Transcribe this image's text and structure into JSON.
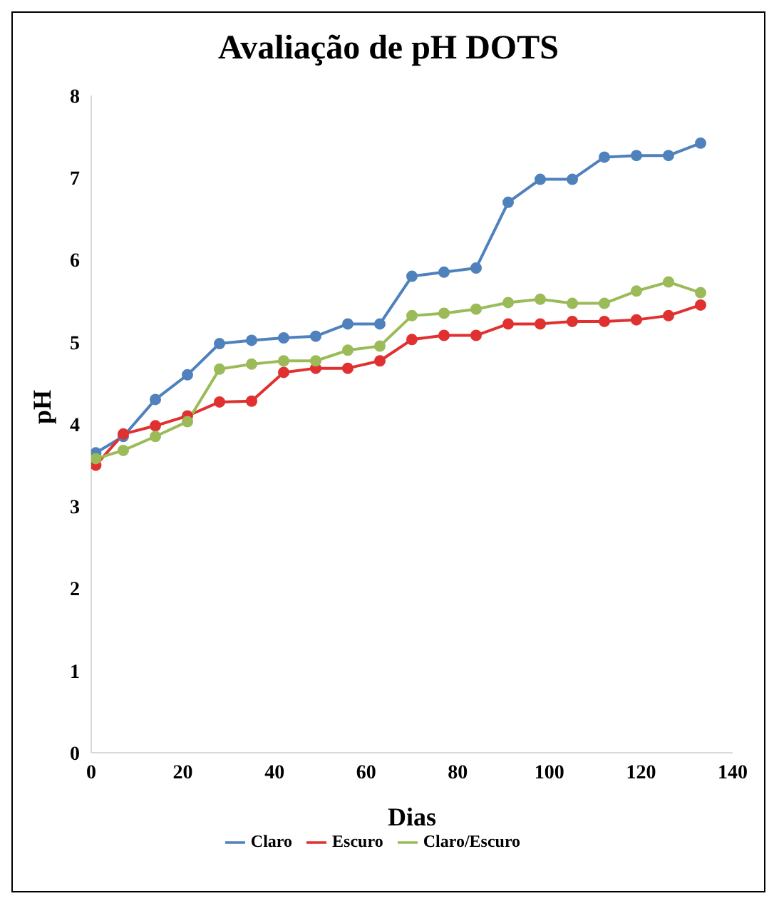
{
  "chart_data": {
    "type": "line",
    "title": "Avaliação de pH DOTS",
    "xlabel": "Dias",
    "ylabel": "pH",
    "x": [
      1,
      7,
      14,
      21,
      28,
      35,
      42,
      49,
      56,
      63,
      70,
      77,
      84,
      91,
      98,
      105,
      112,
      119,
      126,
      133
    ],
    "series": [
      {
        "name": "Claro",
        "color": "#4f81bd",
        "values": [
          3.65,
          3.85,
          4.3,
          4.6,
          4.98,
          5.02,
          5.05,
          5.07,
          5.22,
          5.22,
          5.8,
          5.85,
          5.9,
          6.7,
          6.98,
          6.98,
          7.25,
          7.27,
          7.27,
          7.42
        ]
      },
      {
        "name": "Escuro",
        "color": "#e03030",
        "values": [
          3.5,
          3.88,
          3.98,
          4.1,
          4.27,
          4.28,
          4.63,
          4.68,
          4.68,
          4.77,
          5.03,
          5.08,
          5.08,
          5.22,
          5.22,
          5.25,
          5.25,
          5.27,
          5.32,
          5.45
        ]
      },
      {
        "name": "Claro/Escuro",
        "color": "#9bbb59",
        "values": [
          3.58,
          3.68,
          3.85,
          4.03,
          4.67,
          4.73,
          4.77,
          4.77,
          4.9,
          4.95,
          5.32,
          5.35,
          5.4,
          5.48,
          5.52,
          5.47,
          5.47,
          5.62,
          5.73,
          5.6
        ]
      }
    ],
    "xlim": [
      0,
      140
    ],
    "xticks": [
      0,
      20,
      40,
      60,
      80,
      100,
      120,
      140
    ],
    "ylim": [
      0,
      8
    ],
    "yticks": [
      0,
      1,
      2,
      3,
      4,
      5,
      6,
      7,
      8
    ],
    "marker": "circle",
    "legend": "bottom",
    "grid": false
  }
}
